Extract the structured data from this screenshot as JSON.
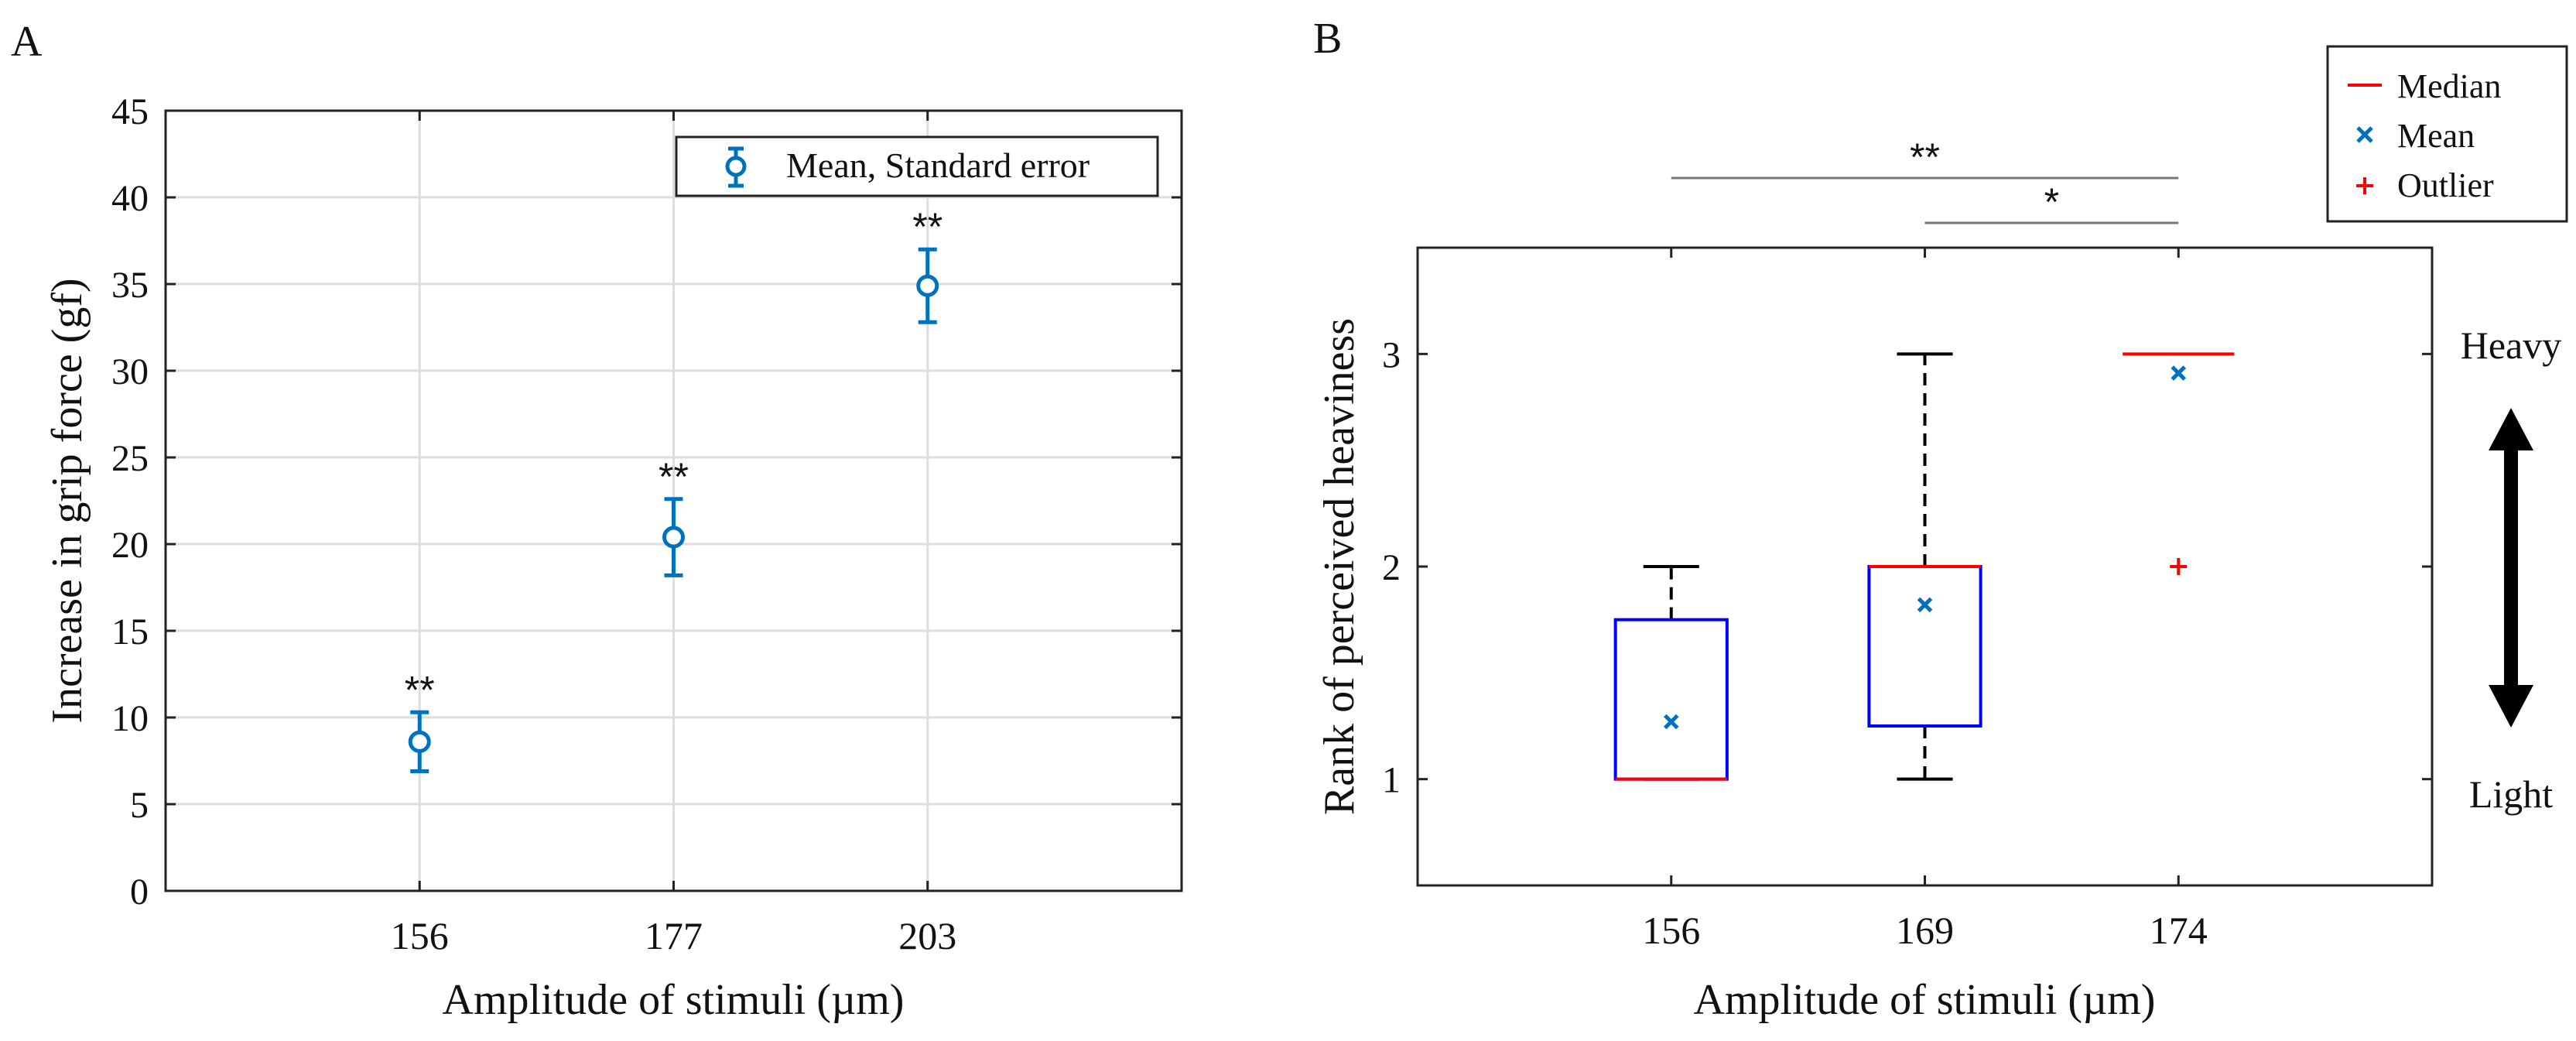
{
  "figure": {
    "panels": [
      {
        "label": "A",
        "chart_data": {
          "type": "scatter",
          "title": "",
          "xlabel": "Amplitude of stimuli (µm)",
          "ylabel": "Increase in grip force (gf)",
          "categories": [
            "156",
            "177",
            "203"
          ],
          "xlim": [
            0,
            4
          ],
          "ylim": [
            0,
            45
          ],
          "yticks": [
            0,
            5,
            10,
            15,
            20,
            25,
            30,
            35,
            40,
            45
          ],
          "grid": true,
          "legend": {
            "placement": "top-right",
            "entries": [
              "Mean, Standard error"
            ]
          },
          "series": [
            {
              "name": "Mean, Standard error",
              "color": "#0072BD",
              "values": [
                8.6,
                20.4,
                34.9
              ],
              "errors": [
                1.7,
                2.2,
                2.1
              ]
            }
          ],
          "annotations": [
            {
              "category": "156",
              "text": "**"
            },
            {
              "category": "177",
              "text": "**"
            },
            {
              "category": "203",
              "text": "**"
            }
          ]
        }
      },
      {
        "label": "B",
        "chart_data": {
          "type": "box",
          "title": "",
          "xlabel": "Amplitude of stimuli (µm)",
          "ylabel": "Rank of perceived heaviness",
          "categories": [
            "156",
            "169",
            "174"
          ],
          "ylim": [
            0.5,
            3.5
          ],
          "yticks": [
            1,
            2,
            3
          ],
          "grid": false,
          "boxes": [
            {
              "category": "156",
              "q1": 1.0,
              "median": 1.0,
              "q3": 1.75,
              "whisker_low": 1.0,
              "whisker_high": 2.0,
              "mean": 1.27,
              "outliers": []
            },
            {
              "category": "169",
              "q1": 1.25,
              "median": 2.0,
              "q3": 2.0,
              "whisker_low": 1.0,
              "whisker_high": 3.0,
              "mean": 1.82,
              "outliers": []
            },
            {
              "category": "174",
              "q1": 3.0,
              "median": 3.0,
              "q3": 3.0,
              "whisker_low": 3.0,
              "whisker_high": 3.0,
              "mean": 2.91,
              "outliers": [
                2.0
              ]
            }
          ],
          "legend": {
            "placement": "top-right-outside",
            "entries": [
              {
                "label": "Median",
                "symbol": "line",
                "color": "#FF0000"
              },
              {
                "label": "Mean",
                "symbol": "x",
                "color": "#0072BD"
              },
              {
                "label": "Outlier",
                "symbol": "+",
                "color": "#FF0000"
              }
            ]
          },
          "significance": [
            {
              "from": "156",
              "to": "174",
              "text": "**"
            },
            {
              "from": "169",
              "to": "174",
              "text": "*"
            }
          ],
          "side_labels": {
            "top": "Heavy",
            "bottom": "Light"
          },
          "colors": {
            "box": "#0000FF",
            "median": "#FF0000",
            "whisker": "#000000",
            "mean": "#0072BD",
            "outlier": "#FF0000"
          }
        }
      }
    ]
  }
}
